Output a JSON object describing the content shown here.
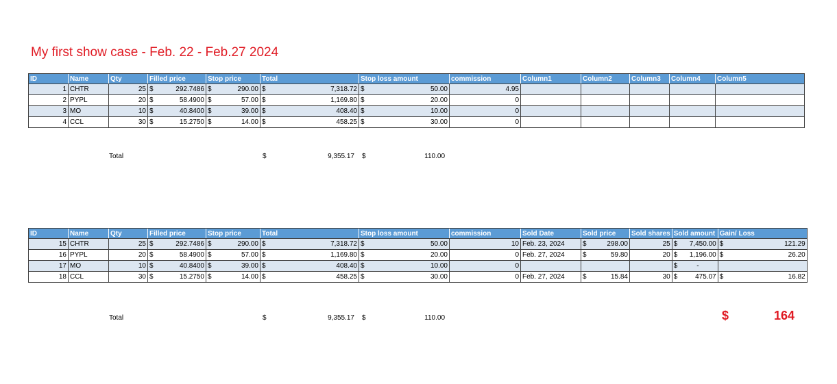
{
  "title": "My first show case - Feb. 22 - Feb.27 2024",
  "table1": {
    "headers": [
      "ID",
      "Name",
      "Qty",
      "Filled price",
      "Stop price",
      "Total",
      "Stop loss amount",
      "commission",
      "Column1",
      "Column2",
      "Column3",
      "Column4",
      "Column5"
    ],
    "rows": [
      {
        "id": "1",
        "name": "CHTR",
        "qty": "25",
        "filled": "292.7486",
        "stop": "290.00",
        "total": "7,318.72",
        "sla": "50.00",
        "comm": "4.95"
      },
      {
        "id": "2",
        "name": "PYPL",
        "qty": "20",
        "filled": "58.4900",
        "stop": "57.00",
        "total": "1,169.80",
        "sla": "20.00",
        "comm": "0"
      },
      {
        "id": "3",
        "name": "MO",
        "qty": "10",
        "filled": "40.8400",
        "stop": "39.00",
        "total": "408.40",
        "sla": "10.00",
        "comm": "0"
      },
      {
        "id": "4",
        "name": "CCL",
        "qty": "30",
        "filled": "15.2750",
        "stop": "14.00",
        "total": "458.25",
        "sla": "30.00",
        "comm": "0"
      }
    ],
    "total_label": "Total",
    "total_sum": "9,355.17",
    "total_sla": "110.00"
  },
  "table2": {
    "headers": [
      "ID",
      "Name",
      "Qty",
      "Filled price",
      "Stop price",
      "Total",
      "Stop loss amount",
      "commission",
      "Sold Date",
      "Sold price",
      "Sold shares",
      "Sold amount",
      "Gain/ Loss"
    ],
    "rows": [
      {
        "id": "15",
        "name": "CHTR",
        "qty": "25",
        "filled": "292.7486",
        "stop": "290.00",
        "total": "7,318.72",
        "sla": "50.00",
        "comm": "10",
        "date": "Feb. 23, 2024",
        "sprice": "298.00",
        "sshares": "25",
        "samount": "7,450.00",
        "gain": "121.29"
      },
      {
        "id": "16",
        "name": "PYPL",
        "qty": "20",
        "filled": "58.4900",
        "stop": "57.00",
        "total": "1,169.80",
        "sla": "20.00",
        "comm": "0",
        "date": "Feb. 27, 2024",
        "sprice": "59.80",
        "sshares": "20",
        "samount": "1,196.00",
        "gain": "26.20"
      },
      {
        "id": "17",
        "name": "MO",
        "qty": "10",
        "filled": "40.8400",
        "stop": "39.00",
        "total": "408.40",
        "sla": "10.00",
        "comm": "0",
        "date": "",
        "sprice": "",
        "sshares": "",
        "samount": "-",
        "gain": ""
      },
      {
        "id": "18",
        "name": "CCL",
        "qty": "30",
        "filled": "15.2750",
        "stop": "14.00",
        "total": "458.25",
        "sla": "30.00",
        "comm": "0",
        "date": "Feb. 27, 2024",
        "sprice": "15.84",
        "sshares": "30",
        "samount": "475.07",
        "gain": "16.82"
      }
    ],
    "total_label": "Total",
    "total_sum": "9,355.17",
    "total_sla": "110.00",
    "gain_total": "164"
  },
  "currency": "$",
  "colors": {
    "header_bg": "#5b9bd5",
    "band_bg": "#dce6f1",
    "accent_red": "#e01b24"
  }
}
